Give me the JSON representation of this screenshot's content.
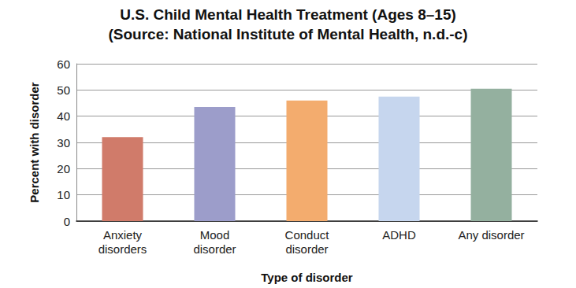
{
  "chart_data": {
    "type": "bar",
    "title": "U.S. Child Mental Health Treatment (Ages 8–15)",
    "subtitle": "(Source: National Institute of Mental Health, n.d.-c)",
    "x_label": "Type of disorder",
    "y_label": "Percent with disorder",
    "categories": [
      "Anxiety\ndisorders",
      "Mood\ndisorder",
      "Conduct\ndisorder",
      "ADHD",
      "Any disorder"
    ],
    "values": [
      32,
      43.5,
      46,
      47.5,
      50.5
    ],
    "colors": [
      "#d07b6a",
      "#9c9dca",
      "#f3ac6e",
      "#c6d6ee",
      "#94b09f"
    ],
    "ylim": [
      0,
      60
    ],
    "yticks": [
      0,
      10,
      20,
      30,
      40,
      50,
      60
    ],
    "grid": true
  }
}
